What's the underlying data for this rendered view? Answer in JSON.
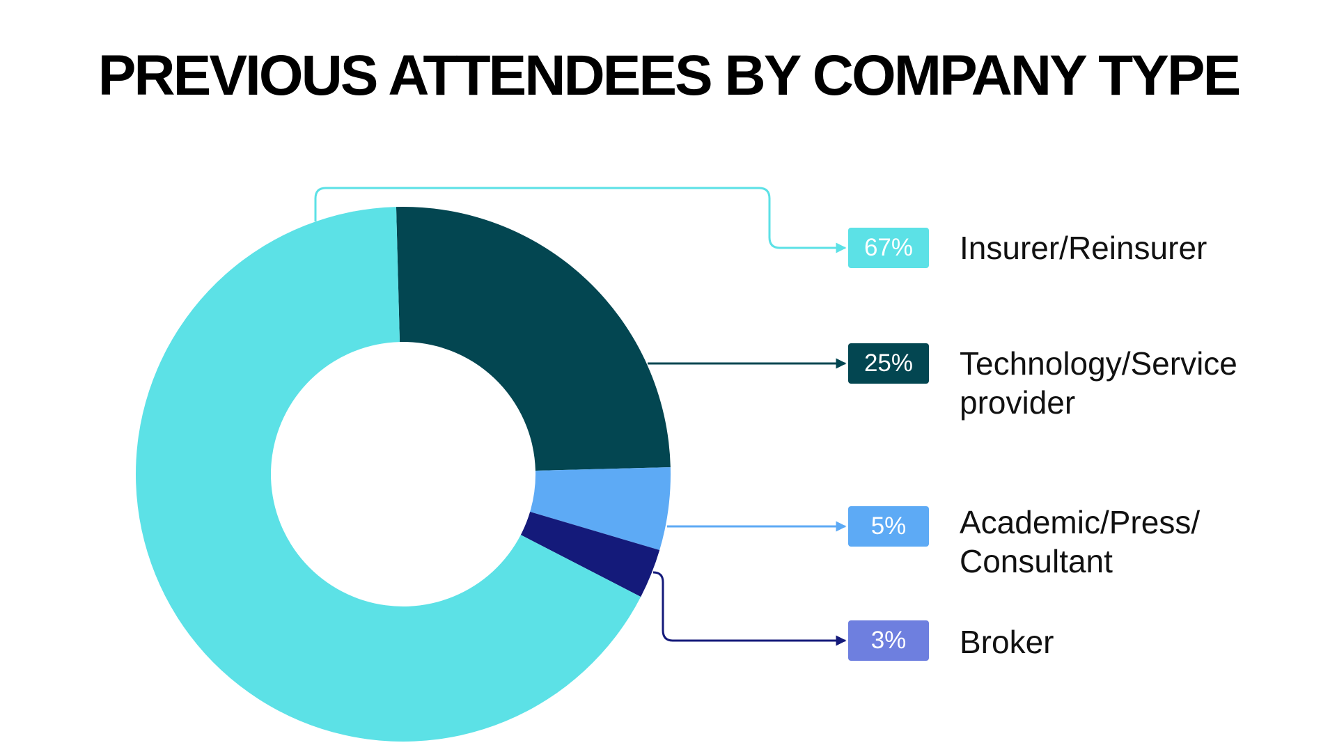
{
  "title": "PREVIOUS ATTENDEES BY COMPANY TYPE",
  "chart_data": {
    "type": "pie",
    "variant": "donut",
    "title": "PREVIOUS ATTENDEES BY COMPANY TYPE",
    "legend_position": "right",
    "slices": [
      {
        "label": "Insurer/Reinsurer",
        "value": 67,
        "value_label": "67%",
        "color": "#5ce1e6",
        "badge_color": "#5ce1e6"
      },
      {
        "label": "Technology/Service\nprovider",
        "value": 25,
        "value_label": "25%",
        "color": "#034651",
        "badge_color": "#034651"
      },
      {
        "label": "Academic/Press/\nConsultant",
        "value": 5,
        "value_label": "5%",
        "color": "#5daaf5",
        "badge_color": "#5daaf5"
      },
      {
        "label": "Broker",
        "value": 3,
        "value_label": "3%",
        "color": "#141a7a",
        "badge_color": "#6e7fdf"
      }
    ]
  }
}
